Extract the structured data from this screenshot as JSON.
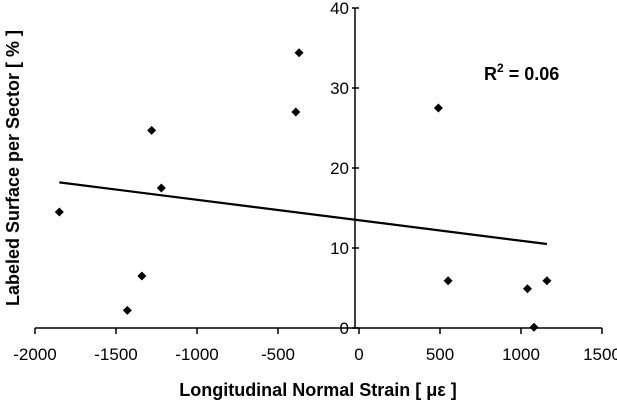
{
  "chart_data": {
    "type": "scatter",
    "xlabel": "Longitudinal Normal Strain [ με ]",
    "ylabel": "Labeled Surface per Sector [ % ]",
    "xlim": [
      -2000,
      1500
    ],
    "ylim": [
      0,
      40
    ],
    "x_ticks": [
      -2000,
      -1500,
      -1000,
      -500,
      0,
      500,
      1000,
      1500
    ],
    "y_ticks": [
      0,
      10,
      20,
      30,
      40
    ],
    "grid": false,
    "series": [
      {
        "points": [
          {
            "x": -1850,
            "y": 14.5
          },
          {
            "x": -1430,
            "y": 2.2
          },
          {
            "x": -1340,
            "y": 6.5
          },
          {
            "x": -1280,
            "y": 24.7
          },
          {
            "x": -1220,
            "y": 17.5
          },
          {
            "x": -390,
            "y": 27.0
          },
          {
            "x": -370,
            "y": 34.4
          },
          {
            "x": 490,
            "y": 27.5
          },
          {
            "x": 550,
            "y": 5.9
          },
          {
            "x": 1040,
            "y": 4.9
          },
          {
            "x": 1080,
            "y": 0.1
          },
          {
            "x": 1160,
            "y": 5.9
          }
        ],
        "marker": "diamond",
        "color": "#000000"
      }
    ],
    "trendline": {
      "x": [
        -1850,
        1160
      ],
      "y": [
        18.2,
        10.5
      ]
    },
    "annotation": {
      "base": "R",
      "sup": "2",
      "rest": " = 0.06"
    }
  }
}
